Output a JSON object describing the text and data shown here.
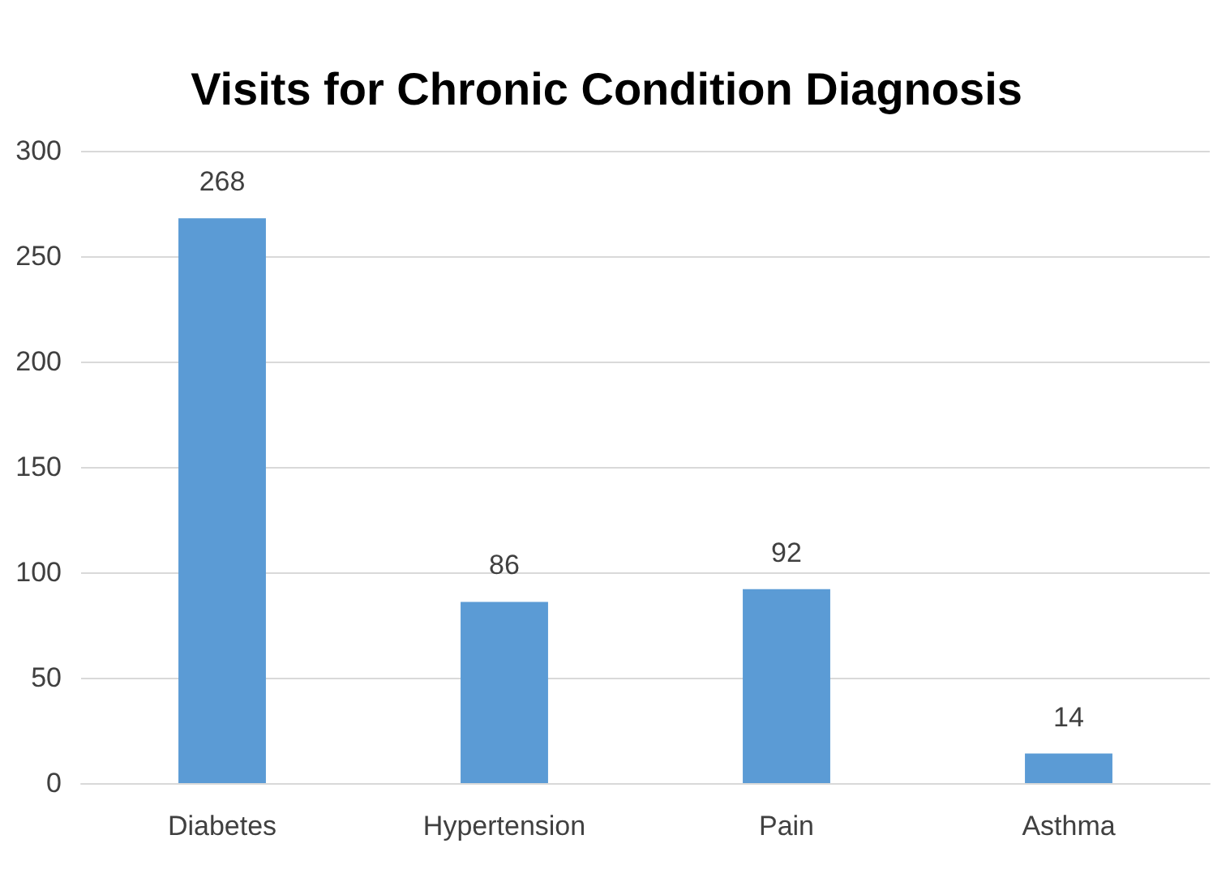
{
  "chart_data": {
    "type": "bar",
    "title": "Visits for Chronic Condition Diagnosis",
    "categories": [
      "Diabetes",
      "Hypertension",
      "Pain",
      "Asthma"
    ],
    "values": [
      268,
      86,
      92,
      14
    ],
    "color": "#5b9bd5",
    "ylim": [
      0,
      300
    ],
    "yticks": [
      0,
      50,
      100,
      150,
      200,
      250,
      300
    ],
    "grid": "y",
    "data_labels": true
  }
}
